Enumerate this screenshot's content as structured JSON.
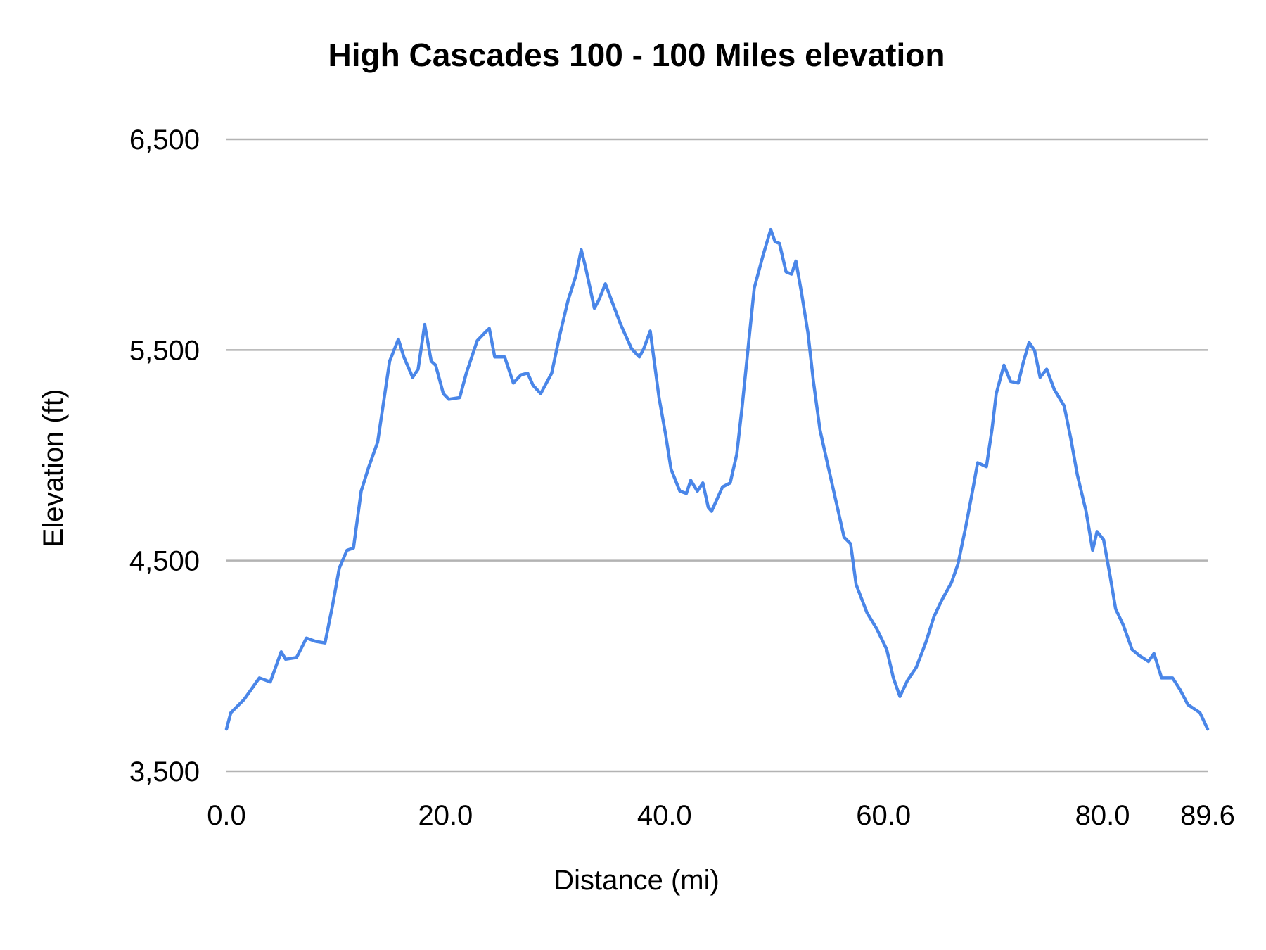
{
  "chart_data": {
    "type": "line",
    "title": "High Cascades 100 - 100 Miles elevation",
    "xlabel": "Distance (mi)",
    "ylabel": "Elevation (ft)",
    "xlim": [
      0,
      89.6
    ],
    "ylim": [
      3500,
      6500
    ],
    "grid": true,
    "line_color": "#4a86e8",
    "x_ticks": [
      0,
      20,
      40,
      60,
      80,
      89.6
    ],
    "x_tick_labels": [
      "0.0",
      "20.0",
      "40.0",
      "60.0",
      "80.0",
      "89.6"
    ],
    "y_ticks": [
      3500,
      4500,
      5500,
      6500
    ],
    "y_tick_labels": [
      "3,500",
      "4,500",
      "5,500",
      "6,500"
    ],
    "series": [
      {
        "name": "Elevation",
        "x": [
          0,
          0.4,
          1.6,
          3.0,
          4.0,
          5.0,
          5.4,
          6.4,
          7.3,
          8.1,
          9.0,
          9.7,
          10.3,
          11.0,
          11.6,
          12.3,
          13.0,
          13.8,
          14.3,
          14.9,
          15.7,
          16.2,
          17.0,
          17.5,
          18.1,
          18.7,
          19.1,
          19.8,
          20.3,
          21.3,
          21.9,
          22.9,
          23.6,
          24.0,
          24.5,
          25.4,
          26.2,
          26.9,
          27.5,
          28.0,
          28.7,
          29.7,
          30.4,
          31.2,
          31.9,
          32.4,
          32.8,
          33.6,
          34.0,
          34.6,
          35.3,
          36.0,
          37.0,
          37.7,
          38.1,
          38.7,
          39.5,
          40.1,
          40.6,
          41.4,
          42.0,
          42.4,
          43.0,
          43.5,
          44.0,
          44.3,
          45.3,
          46.0,
          46.6,
          47.1,
          47.7,
          48.2,
          49.0,
          49.7,
          50.1,
          50.5,
          51.1,
          51.6,
          52.0,
          52.5,
          53.1,
          53.6,
          54.2,
          55.0,
          55.7,
          56.4,
          57.0,
          57.5,
          58.5,
          59.4,
          60.3,
          60.9,
          61.5,
          62.2,
          63.0,
          63.9,
          64.6,
          65.3,
          66.2,
          66.8,
          67.5,
          68.2,
          68.6,
          69.4,
          69.9,
          70.3,
          71.0,
          71.6,
          72.3,
          72.8,
          73.3,
          73.8,
          74.3,
          74.9,
          75.6,
          76.5,
          77.1,
          77.7,
          78.5,
          79.1,
          79.5,
          80.1,
          80.7,
          81.2,
          81.9,
          82.7,
          83.4,
          84.2,
          84.7,
          85.4,
          86.4,
          87.1,
          87.8,
          88.9,
          89.6
        ],
        "values": [
          3700,
          3778,
          3840,
          3943,
          3924,
          4067,
          4032,
          4040,
          4132,
          4117,
          4109,
          4290,
          4464,
          4549,
          4560,
          4830,
          4946,
          5062,
          5235,
          5447,
          5551,
          5467,
          5370,
          5409,
          5621,
          5447,
          5428,
          5293,
          5266,
          5274,
          5390,
          5544,
          5582,
          5602,
          5467,
          5467,
          5343,
          5382,
          5390,
          5332,
          5293,
          5390,
          5563,
          5737,
          5852,
          5976,
          5891,
          5698,
          5737,
          5814,
          5717,
          5621,
          5505,
          5467,
          5505,
          5590,
          5274,
          5100,
          4934,
          4830,
          4819,
          4881,
          4830,
          4869,
          4753,
          4734,
          4850,
          4869,
          5004,
          5235,
          5544,
          5794,
          5949,
          6072,
          6014,
          6006,
          5871,
          5860,
          5922,
          5775,
          5582,
          5351,
          5120,
          4934,
          4773,
          4611,
          4580,
          4387,
          4252,
          4175,
          4078,
          3943,
          3855,
          3932,
          3994,
          4117,
          4233,
          4310,
          4395,
          4483,
          4657,
          4850,
          4965,
          4946,
          5120,
          5293,
          5428,
          5351,
          5343,
          5447,
          5536,
          5497,
          5370,
          5409,
          5312,
          5235,
          5081,
          4908,
          4734,
          4549,
          4638,
          4599,
          4426,
          4271,
          4194,
          4078,
          4048,
          4021,
          4059,
          3943,
          3943,
          3886,
          3816,
          3778,
          3700
        ]
      }
    ]
  }
}
